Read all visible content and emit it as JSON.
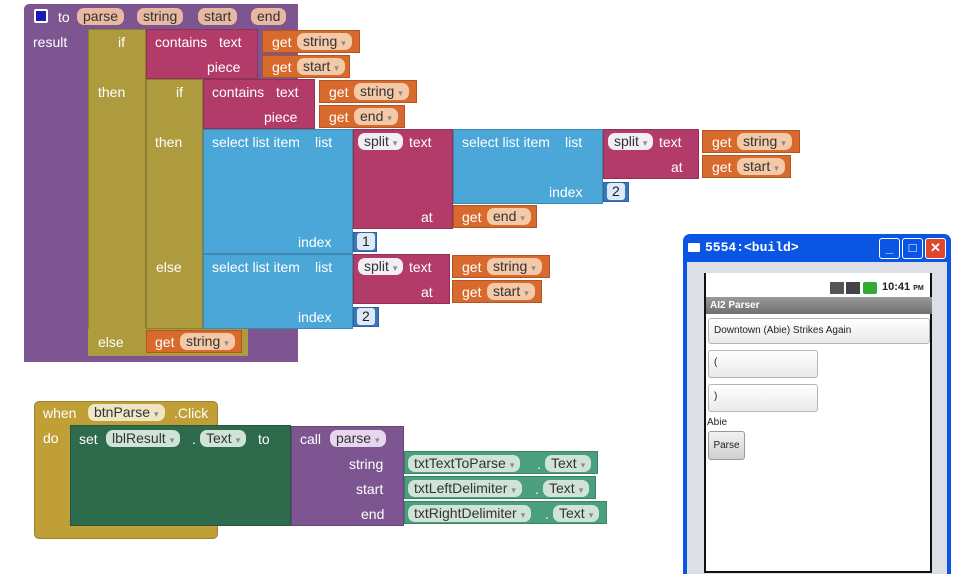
{
  "procedure": {
    "to": "to",
    "name": "parse",
    "params": [
      "string",
      "start",
      "end"
    ],
    "result": "result",
    "if": "if",
    "then": "then",
    "else": "else",
    "contains": "contains",
    "text": "text",
    "piece": "piece",
    "get": "get",
    "select_list_item": "select list item",
    "list": "list",
    "split": "split",
    "at": "at",
    "index": "index",
    "num_1": "1",
    "num_2": "2",
    "var_string": "string",
    "var_start": "start",
    "var_end": "end"
  },
  "event": {
    "when": "when",
    "component": "btnParse",
    "event": ".Click",
    "do": "do",
    "set": "set",
    "target": "lblResult",
    "dot": ".",
    "prop": "Text",
    "to": "to",
    "call": "call",
    "proc": "parse",
    "args": [
      {
        "label": "string",
        "component": "txtTextToParse",
        "prop": "Text"
      },
      {
        "label": "start",
        "component": "txtLeftDelimiter",
        "prop": "Text"
      },
      {
        "label": "end",
        "component": "txtRightDelimiter",
        "prop": "Text"
      }
    ]
  },
  "emulator": {
    "window_title": "5554:<build>",
    "minimize": "_",
    "maximize": "□",
    "close": "✕",
    "time": "10:41",
    "ampm": "PM",
    "app_title": "AI2 Parser",
    "text_to_parse": "Downtown (Abie)  Strikes Again",
    "left_delim": "(",
    "right_delim": ")",
    "result_label": "Abie",
    "parse_button": "Parse"
  }
}
